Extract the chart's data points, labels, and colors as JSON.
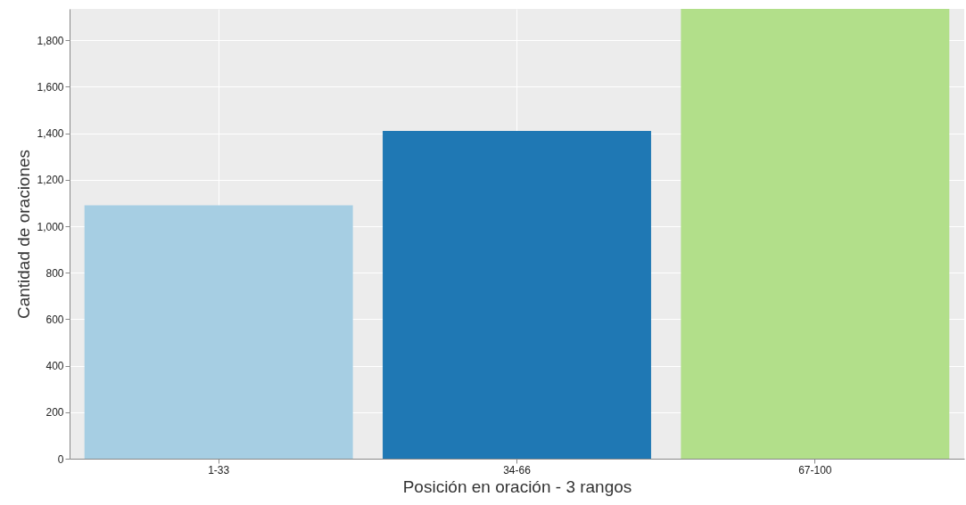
{
  "chart_data": {
    "type": "bar",
    "xlabel": "Posición en oración - 3 rangos",
    "ylabel": "Cantidad de oraciones",
    "categories": [
      "1-33",
      "34-66",
      "67-100"
    ],
    "values": [
      1090,
      1410,
      1935
    ],
    "colors": [
      "#a6cee3",
      "#1f78b4",
      "#b2df8a"
    ],
    "ylim": [
      0,
      1935
    ],
    "yticks": [
      {
        "value": 0,
        "label": "0"
      },
      {
        "value": 200,
        "label": "200"
      },
      {
        "value": 400,
        "label": "400"
      },
      {
        "value": 600,
        "label": "600"
      },
      {
        "value": 800,
        "label": "800"
      },
      {
        "value": 1000,
        "label": "1,000"
      },
      {
        "value": 1200,
        "label": "1,200"
      },
      {
        "value": 1400,
        "label": "1,400"
      },
      {
        "value": 1600,
        "label": "1,600"
      },
      {
        "value": 1800,
        "label": "1,800"
      }
    ],
    "grid": true
  }
}
